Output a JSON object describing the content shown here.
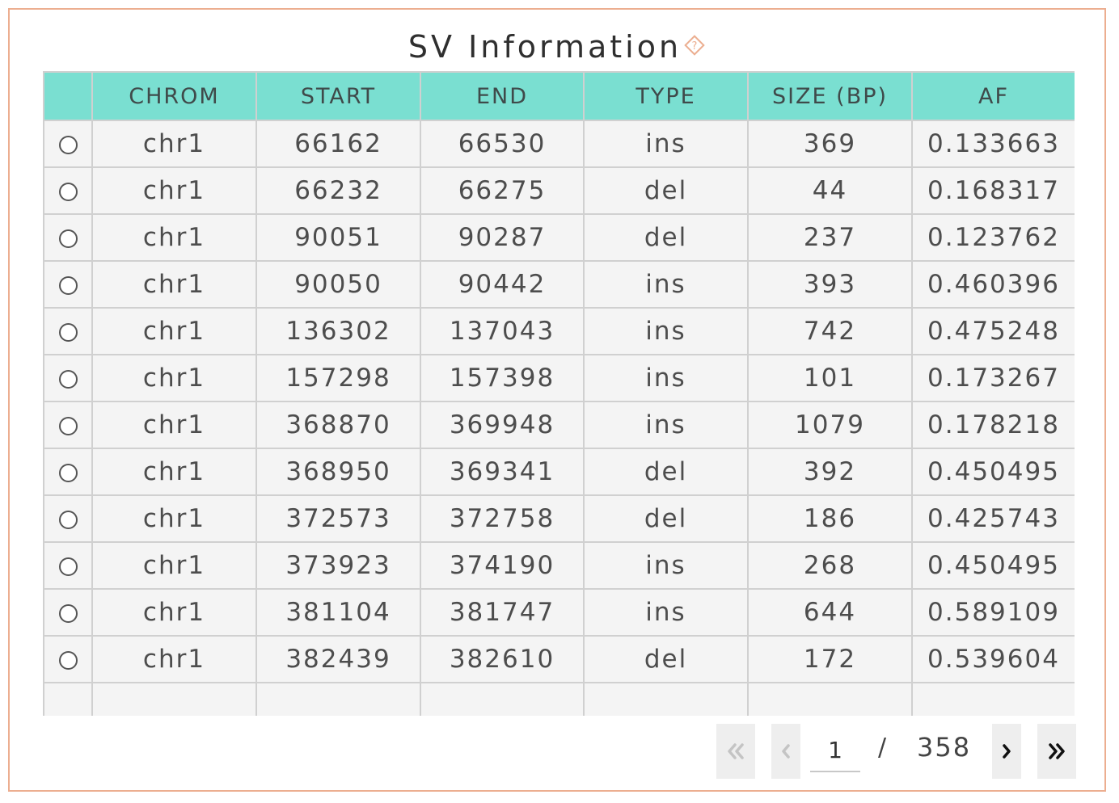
{
  "panel": {
    "title": "SV Information",
    "help_icon": "help-diamond-icon",
    "accent_color": "#ecae90",
    "header_color": "#7adfd1"
  },
  "table": {
    "columns": [
      "",
      "CHROM",
      "START",
      "END",
      "TYPE",
      "SIZE (BP)",
      "AF"
    ],
    "rows": [
      [
        "chr1",
        "66162",
        "66530",
        "ins",
        "369",
        "0.133663"
      ],
      [
        "chr1",
        "66232",
        "66275",
        "del",
        "44",
        "0.168317"
      ],
      [
        "chr1",
        "90051",
        "90287",
        "del",
        "237",
        "0.123762"
      ],
      [
        "chr1",
        "90050",
        "90442",
        "ins",
        "393",
        "0.460396"
      ],
      [
        "chr1",
        "136302",
        "137043",
        "ins",
        "742",
        "0.475248"
      ],
      [
        "chr1",
        "157298",
        "157398",
        "ins",
        "101",
        "0.173267"
      ],
      [
        "chr1",
        "368870",
        "369948",
        "ins",
        "1079",
        "0.178218"
      ],
      [
        "chr1",
        "368950",
        "369341",
        "del",
        "392",
        "0.450495"
      ],
      [
        "chr1",
        "372573",
        "372758",
        "del",
        "186",
        "0.425743"
      ],
      [
        "chr1",
        "373923",
        "374190",
        "ins",
        "268",
        "0.450495"
      ],
      [
        "chr1",
        "381104",
        "381747",
        "ins",
        "644",
        "0.589109"
      ],
      [
        "chr1",
        "382439",
        "382610",
        "del",
        "172",
        "0.539604"
      ]
    ]
  },
  "pagination": {
    "current_page": "1",
    "separator": "/",
    "total_pages": "358",
    "first_icon": "double-chevron-left-icon",
    "prev_icon": "chevron-left-icon",
    "next_icon": "chevron-right-icon",
    "last_icon": "double-chevron-right-icon"
  }
}
